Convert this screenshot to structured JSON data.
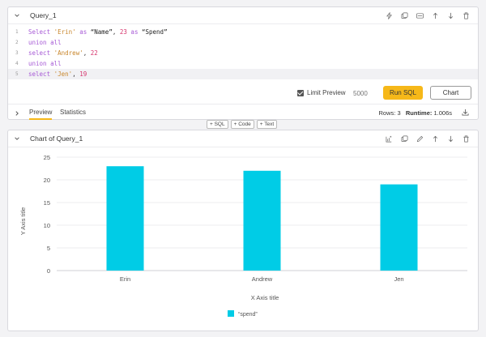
{
  "query_cell": {
    "title": "Query_1",
    "code_lines": [
      {
        "num": "1",
        "tokens": [
          {
            "t": "Select ",
            "c": "kw"
          },
          {
            "t": "'Erin'",
            "c": "str"
          },
          {
            "t": " as ",
            "c": "kw"
          },
          {
            "t": "“Name”",
            "c": "strdq"
          },
          {
            "t": ", ",
            "c": "pl"
          },
          {
            "t": "23",
            "c": "num"
          },
          {
            "t": " as ",
            "c": "kw"
          },
          {
            "t": "“Spend”",
            "c": "strdq"
          }
        ]
      },
      {
        "num": "2",
        "tokens": [
          {
            "t": "union all",
            "c": "kw"
          }
        ]
      },
      {
        "num": "3",
        "tokens": [
          {
            "t": "select ",
            "c": "kw"
          },
          {
            "t": "'Andrew'",
            "c": "str"
          },
          {
            "t": ", ",
            "c": "pl"
          },
          {
            "t": "22",
            "c": "num"
          }
        ]
      },
      {
        "num": "4",
        "tokens": [
          {
            "t": "union all",
            "c": "kw"
          }
        ]
      },
      {
        "num": "5",
        "tokens": [
          {
            "t": "select ",
            "c": "kw"
          },
          {
            "t": "'Jen'",
            "c": "str"
          },
          {
            "t": ", ",
            "c": "pl"
          },
          {
            "t": "19",
            "c": "num"
          }
        ]
      }
    ],
    "limit_preview_label": "Limit Preview",
    "limit_preview_checked": true,
    "limit_value": "5000",
    "run_label": "Run SQL",
    "chart_label": "Chart",
    "tabs": [
      "Preview",
      "Statistics"
    ],
    "rows_label": "Rows:",
    "rows_value": "3",
    "runtime_label": "Runtime:",
    "runtime_value": "1.006s",
    "icons": [
      "bolt-icon",
      "copy-sql-icon",
      "toggle-view-icon",
      "arrow-up-icon",
      "arrow-down-icon",
      "trash-icon"
    ]
  },
  "add_cell": {
    "sql_label": "+ SQL",
    "code_label": "+ Code",
    "text_label": "+ Text"
  },
  "chart_cell": {
    "title": "Chart of Query_1",
    "icons": [
      "chart-settings-icon",
      "copy-icon",
      "edit-icon",
      "arrow-up-icon",
      "arrow-down-icon",
      "trash-icon"
    ]
  },
  "chart_data": {
    "type": "bar",
    "categories": [
      "Erin",
      "Andrew",
      "Jen"
    ],
    "series": [
      {
        "name": "“spend”",
        "values": [
          23,
          22,
          19
        ],
        "color": "#00cce6"
      }
    ],
    "xlabel": "X Axis title",
    "ylabel": "Y Axis title",
    "ylim": [
      0,
      25
    ],
    "yticks": [
      0,
      5,
      10,
      15,
      20,
      25
    ],
    "grid": true,
    "legend_position": "bottom-left"
  }
}
